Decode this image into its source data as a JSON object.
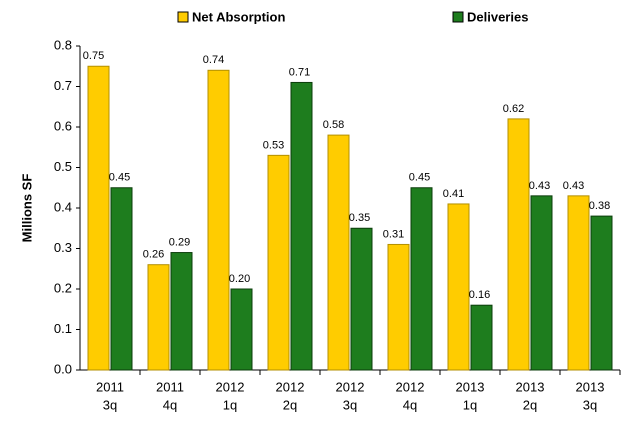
{
  "chart_data": {
    "type": "bar",
    "y_label": "Millions SF",
    "categories": [
      [
        "2011",
        "3q"
      ],
      [
        "2011",
        "4q"
      ],
      [
        "2012",
        "1q"
      ],
      [
        "2012",
        "2q"
      ],
      [
        "2012",
        "3q"
      ],
      [
        "2012",
        "4q"
      ],
      [
        "2013",
        "1q"
      ],
      [
        "2013",
        "2q"
      ],
      [
        "2013",
        "3q"
      ]
    ],
    "series": [
      {
        "name": "Net Absorption",
        "color": "#ffcc00",
        "values": [
          0.75,
          0.26,
          0.74,
          0.53,
          0.58,
          0.31,
          0.41,
          0.62,
          0.43
        ],
        "value_labels": [
          "0.75",
          "0.26",
          "0.74",
          "0.53",
          "0.58",
          "0.31",
          "0.41",
          "0.62",
          "0.43"
        ]
      },
      {
        "name": "Deliveries",
        "color": "#1e7d1e",
        "values": [
          0.45,
          0.29,
          0.2,
          0.71,
          0.35,
          0.45,
          0.16,
          0.43,
          0.38
        ],
        "value_labels": [
          "0.45",
          "0.29",
          "0.20",
          "0.71",
          "0.35",
          "0.45",
          "0.16",
          "0.43",
          "0.38"
        ]
      }
    ],
    "ylim": [
      0,
      0.8
    ],
    "yticks": [
      {
        "value": 0,
        "label": "0.0"
      },
      0.1,
      0.2,
      0.3,
      0.4,
      0.5,
      0.6,
      0.7,
      0.8
    ],
    "grid": false,
    "legend": "top"
  }
}
